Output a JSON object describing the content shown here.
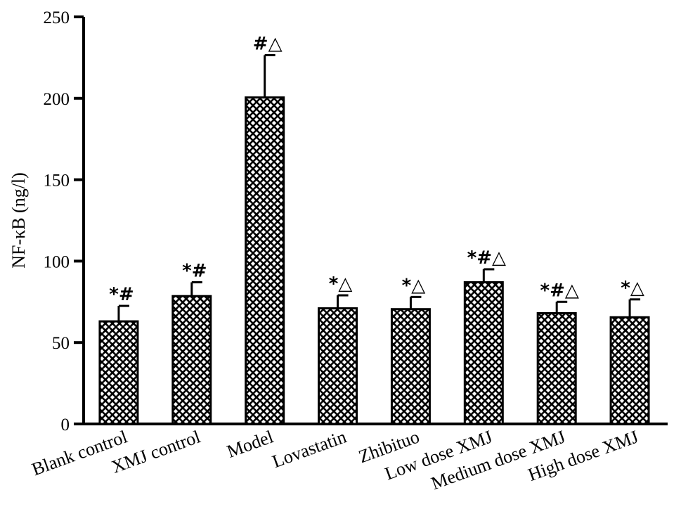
{
  "chart_data": {
    "type": "bar",
    "title": "",
    "xlabel": "",
    "ylabel": "NF-κB (ng/l)",
    "ylim": [
      0,
      250
    ],
    "yticks": [
      0,
      50,
      100,
      150,
      200,
      250
    ],
    "grid": false,
    "categories": [
      "Blank control",
      "XMJ control",
      "Model",
      "Lovastatin",
      "Zhibituo",
      "Low dose XMJ",
      "Medium dose XMJ",
      "High dose XMJ"
    ],
    "values": [
      63,
      78.5,
      200.5,
      71,
      70.5,
      87,
      68,
      65.5
    ],
    "errors": [
      9.5,
      8.5,
      26,
      8,
      7.5,
      8,
      7,
      11
    ],
    "annotations": [
      "*#",
      "*#",
      "#△",
      "*△",
      "*△",
      "*#△",
      "*#△",
      "*△"
    ],
    "bar_fill": "crosshatch",
    "colors": {
      "bar_stroke": "#000000",
      "hatch": "#000000",
      "background": "#ffffff"
    }
  }
}
